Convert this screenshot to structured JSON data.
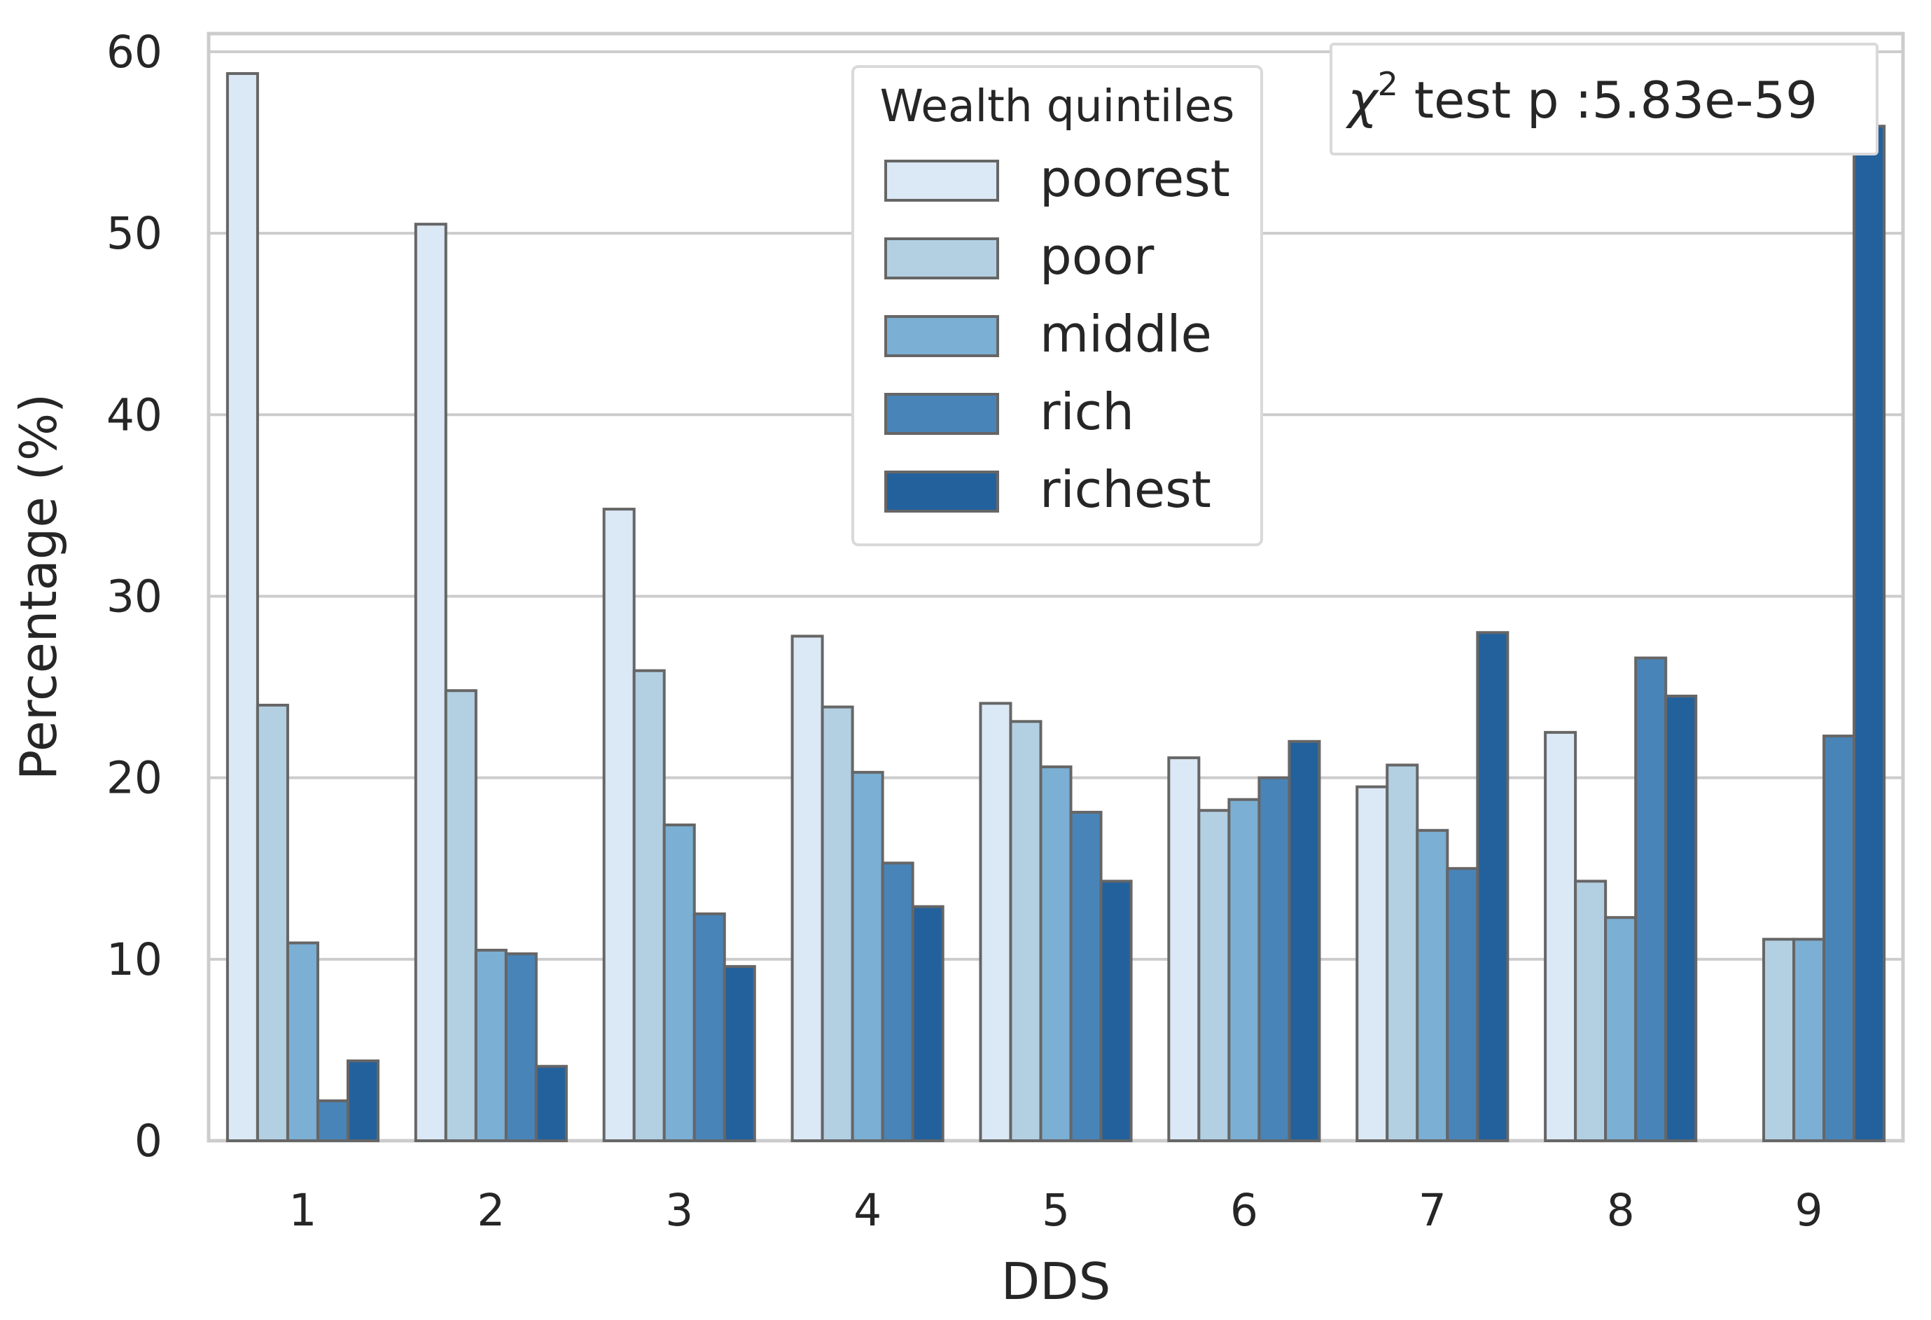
{
  "chart_data": {
    "type": "bar",
    "xlabel": "DDS",
    "ylabel": "Percentage (%)",
    "ylim": [
      0,
      61
    ],
    "yticks": [
      "0",
      "10",
      "20",
      "30",
      "40",
      "50",
      "60"
    ],
    "categories": [
      "1",
      "2",
      "3",
      "4",
      "5",
      "6",
      "7",
      "8",
      "9"
    ],
    "grid": true,
    "legend": {
      "title": "Wealth quintiles",
      "placement": "top-center"
    },
    "annotation": {
      "chi_symbol": "χ",
      "superscript": "2",
      "text": " test p :5.83e-59",
      "placement": "top-right"
    },
    "series": [
      {
        "name": "poorest",
        "color": "#dbe8f5",
        "values": [
          58.8,
          50.5,
          34.8,
          27.8,
          24.1,
          21.1,
          19.5,
          22.5,
          0.0
        ]
      },
      {
        "name": "poor",
        "color": "#b3d0e3",
        "values": [
          24.0,
          24.8,
          25.9,
          23.9,
          23.1,
          18.2,
          20.7,
          14.3,
          11.1
        ]
      },
      {
        "name": "middle",
        "color": "#7bafd4",
        "values": [
          10.9,
          10.5,
          17.4,
          20.3,
          20.6,
          18.8,
          17.1,
          12.3,
          11.1
        ]
      },
      {
        "name": "rich",
        "color": "#4884b8",
        "values": [
          2.2,
          10.3,
          12.5,
          15.3,
          18.1,
          20.0,
          15.0,
          26.6,
          22.3
        ]
      },
      {
        "name": "richest",
        "color": "#23619d",
        "values": [
          4.4,
          4.1,
          9.6,
          12.9,
          14.3,
          22.0,
          28.0,
          24.5,
          55.9
        ]
      }
    ]
  }
}
